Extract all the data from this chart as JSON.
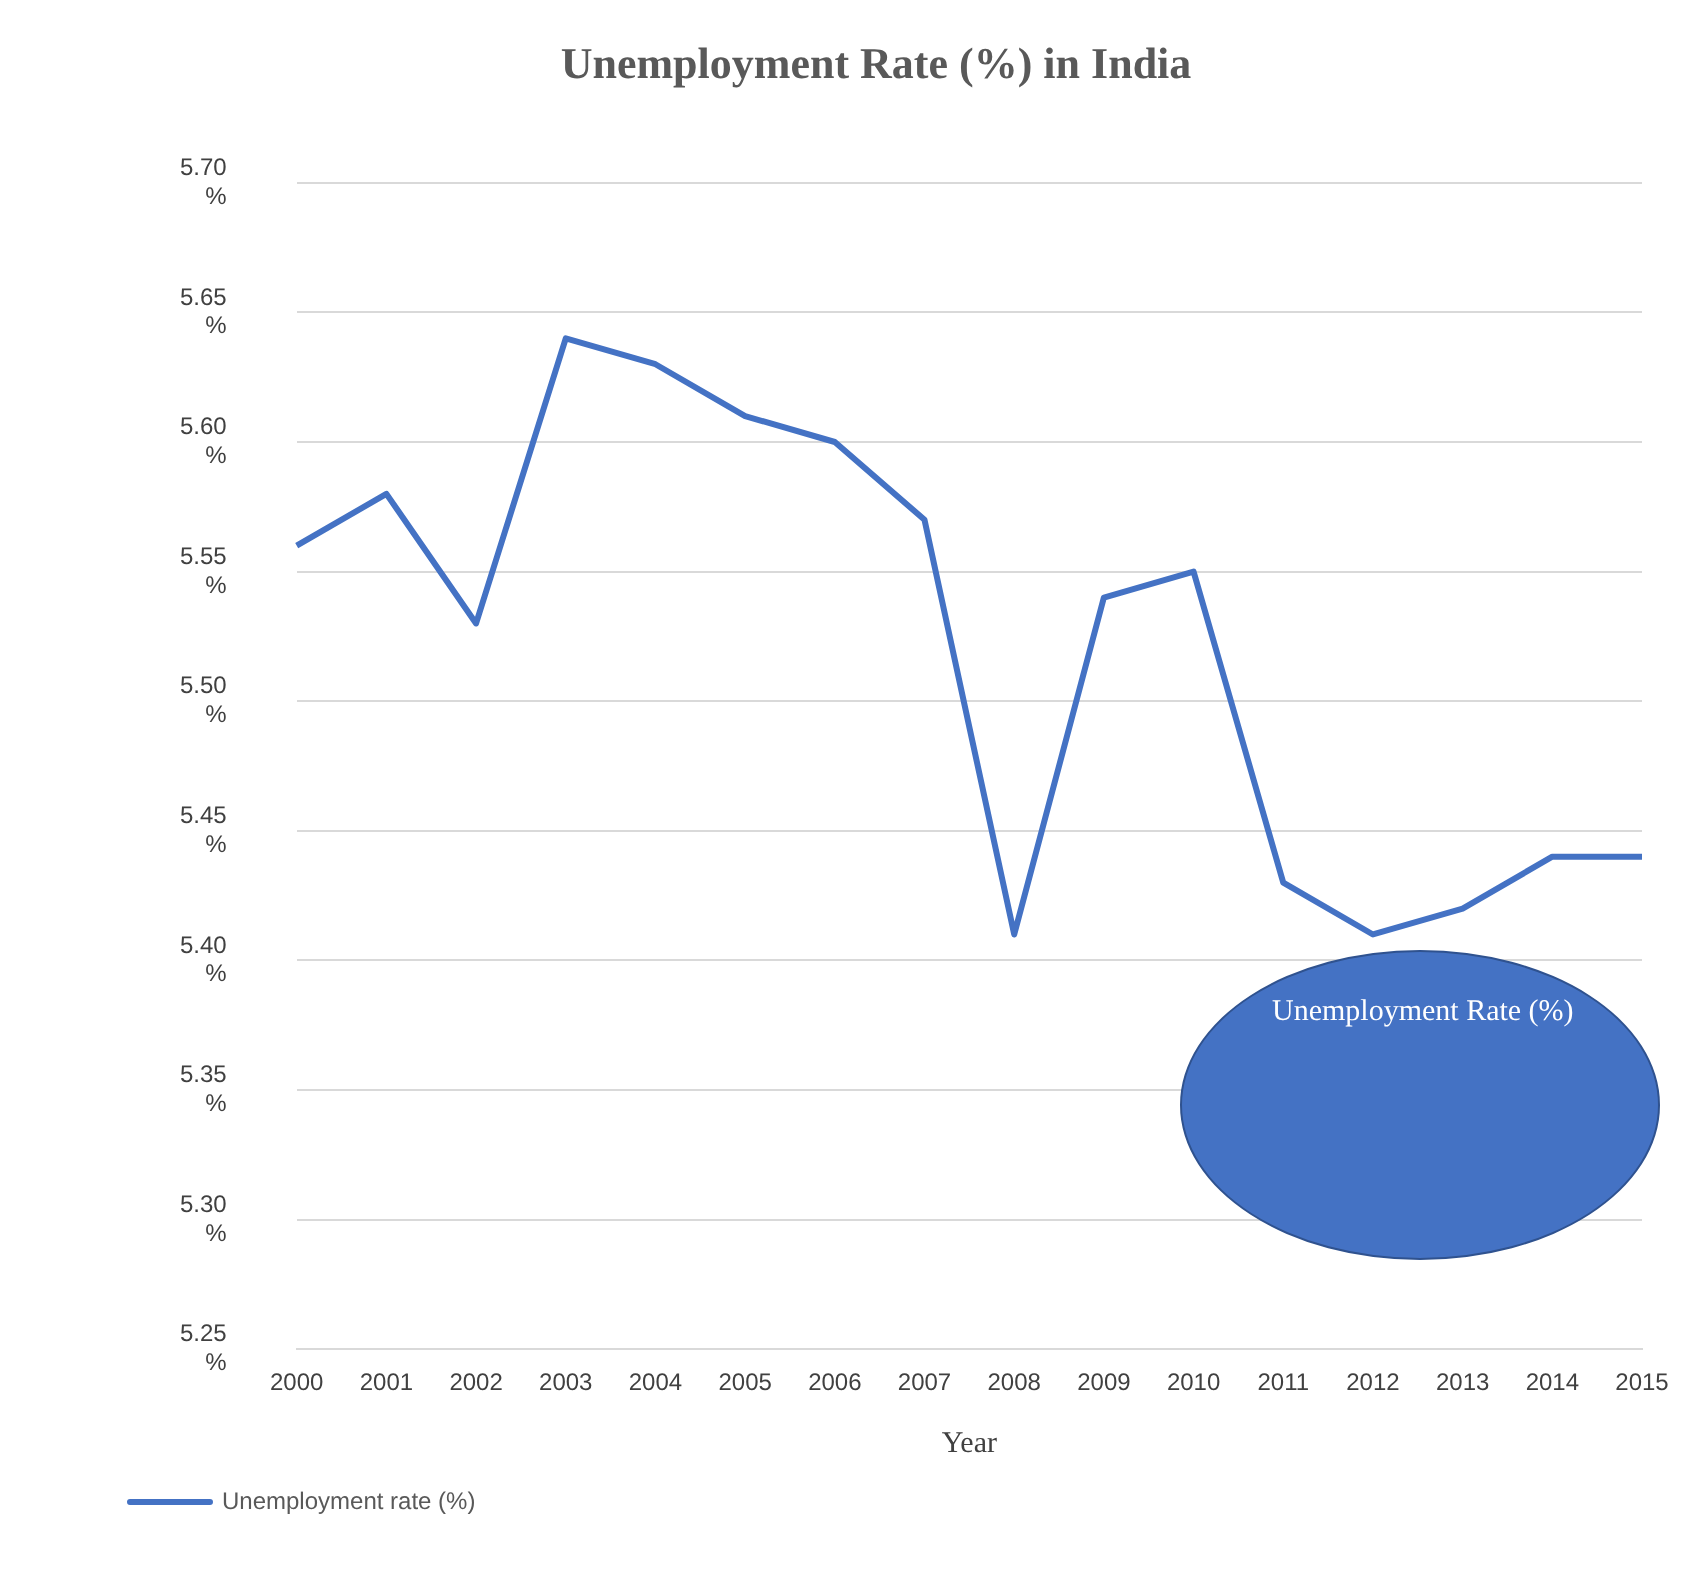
{
  "chart_data": {
    "type": "line",
    "title": "Unemployment Rate (%) in India",
    "xlabel": "Year",
    "categories": [
      "2000",
      "2001",
      "2002",
      "2003",
      "2004",
      "2005",
      "2006",
      "2007",
      "2008",
      "2009",
      "2010",
      "2011",
      "2012",
      "2013",
      "2014",
      "2015"
    ],
    "series": [
      {
        "name": "Unemployment rate (%)",
        "color": "#4472c4",
        "values": [
          5.56,
          5.58,
          5.53,
          5.64,
          5.63,
          5.61,
          5.6,
          5.57,
          5.41,
          5.54,
          5.55,
          5.43,
          5.41,
          5.42,
          5.44,
          5.44
        ]
      }
    ],
    "ylim": [
      5.25,
      5.7
    ],
    "yticks": [
      {
        "value": 5.25,
        "label": "5.25 %"
      },
      {
        "value": 5.3,
        "label": "5.30 %"
      },
      {
        "value": 5.35,
        "label": "5.35 %"
      },
      {
        "value": 5.4,
        "label": "5.40 %"
      },
      {
        "value": 5.45,
        "label": "5.45 %"
      },
      {
        "value": 5.5,
        "label": "5.50 %"
      },
      {
        "value": 5.55,
        "label": "5.55 %"
      },
      {
        "value": 5.6,
        "label": "5.60 %"
      },
      {
        "value": 5.65,
        "label": "5.65 %"
      },
      {
        "value": 5.7,
        "label": "5.70 %"
      }
    ],
    "grid": "y",
    "legend": "bottom left",
    "marker": "none",
    "line_style": "solid",
    "annotations": [
      "Unemployment Rate (%)"
    ]
  }
}
